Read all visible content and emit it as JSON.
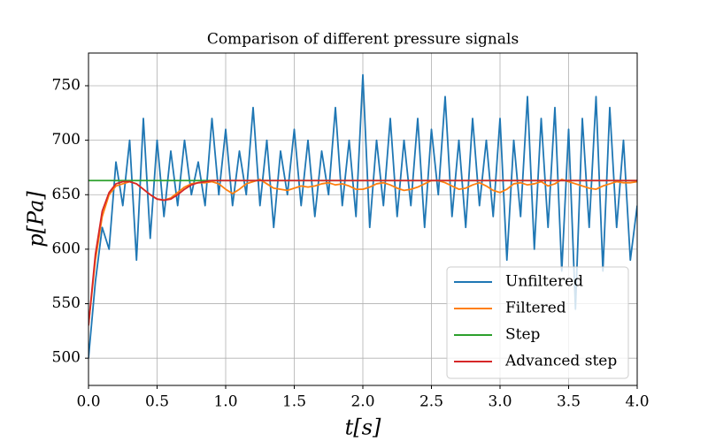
{
  "chart_data": {
    "type": "line",
    "title": "Comparison of different pressure signals",
    "xlabel": "t[s]",
    "ylabel": "p[Pa]",
    "x": [
      0,
      0.05,
      0.1,
      0.15,
      0.2,
      0.25,
      0.3,
      0.35,
      0.4,
      0.45,
      0.5,
      0.55,
      0.6,
      0.65,
      0.7,
      0.75,
      0.8,
      0.85,
      0.9,
      0.95,
      1.0,
      1.05,
      1.1,
      1.15,
      1.2,
      1.25,
      1.3,
      1.35,
      1.4,
      1.45,
      1.5,
      1.55,
      1.6,
      1.65,
      1.7,
      1.75,
      1.8,
      1.85,
      1.9,
      1.95,
      2.0,
      2.05,
      2.1,
      2.15,
      2.2,
      2.25,
      2.3,
      2.35,
      2.4,
      2.45,
      2.5,
      2.55,
      2.6,
      2.65,
      2.7,
      2.75,
      2.8,
      2.85,
      2.9,
      2.95,
      3.0,
      3.05,
      3.1,
      3.15,
      3.2,
      3.25,
      3.3,
      3.35,
      3.4,
      3.45,
      3.5,
      3.55,
      3.6,
      3.65,
      3.7,
      3.75,
      3.8,
      3.85,
      3.9,
      3.95,
      4.0
    ],
    "series": [
      {
        "name": "Unfiltered",
        "color": "#1f77b4",
        "values": [
          500,
          570,
          620,
          600,
          680,
          640,
          700,
          590,
          720,
          610,
          700,
          630,
          690,
          640,
          700,
          650,
          680,
          640,
          720,
          650,
          710,
          640,
          690,
          650,
          730,
          640,
          700,
          620,
          690,
          650,
          710,
          640,
          700,
          630,
          690,
          650,
          730,
          640,
          700,
          630,
          760,
          620,
          700,
          640,
          720,
          630,
          700,
          640,
          720,
          620,
          710,
          650,
          740,
          630,
          700,
          620,
          720,
          640,
          700,
          630,
          720,
          590,
          700,
          630,
          740,
          600,
          720,
          620,
          730,
          580,
          710,
          545,
          720,
          620,
          740,
          580,
          730,
          620,
          700,
          590,
          640
        ]
      },
      {
        "name": "Filtered",
        "color": "#ff7f0e",
        "values": [
          530,
          590,
          630,
          650,
          658,
          660,
          662,
          660,
          655,
          650,
          646,
          645,
          647,
          652,
          657,
          660,
          661,
          661,
          662,
          660,
          655,
          651,
          655,
          660,
          662,
          664,
          660,
          656,
          655,
          654,
          656,
          658,
          657,
          658,
          660,
          661,
          659,
          660,
          658,
          655,
          655,
          657,
          660,
          661,
          659,
          656,
          654,
          655,
          657,
          660,
          663,
          663,
          661,
          658,
          655,
          656,
          659,
          661,
          658,
          654,
          652,
          655,
          660,
          661,
          659,
          660,
          662,
          658,
          660,
          664,
          662,
          660,
          658,
          656,
          655,
          658,
          660,
          662,
          661,
          661,
          662
        ]
      },
      {
        "name": "Step",
        "color": "#2ca02c",
        "values": [
          663,
          663,
          663,
          663,
          663,
          663,
          663,
          663,
          663,
          663,
          663,
          663,
          663,
          663,
          663,
          663,
          663,
          663,
          663,
          663,
          663,
          663,
          663,
          663,
          663,
          663,
          663,
          663,
          663,
          663,
          663,
          663,
          663,
          663,
          663,
          663,
          663,
          663,
          663,
          663,
          663,
          663,
          663,
          663,
          663,
          663,
          663,
          663,
          663,
          663,
          663,
          663,
          663,
          663,
          663,
          663,
          663,
          663,
          663,
          663,
          663,
          663,
          663,
          663,
          663,
          663,
          663,
          663,
          663,
          663,
          663,
          663,
          663,
          663,
          663,
          663,
          663,
          663,
          663,
          663,
          663
        ]
      },
      {
        "name": "Advanced step",
        "color": "#d62728",
        "values": [
          530,
          595,
          635,
          652,
          660,
          662,
          662,
          660,
          655,
          650,
          646,
          645,
          646,
          650,
          655,
          659,
          661,
          662,
          663,
          663,
          663,
          663,
          663,
          663,
          663,
          663,
          663,
          663,
          663,
          663,
          663,
          663,
          663,
          663,
          663,
          663,
          663,
          663,
          663,
          663,
          663,
          663,
          663,
          663,
          663,
          663,
          663,
          663,
          663,
          663,
          663,
          663,
          663,
          663,
          663,
          663,
          663,
          663,
          663,
          663,
          663,
          663,
          663,
          663,
          663,
          663,
          663,
          663,
          663,
          663,
          663,
          663,
          663,
          663,
          663,
          663,
          663,
          663,
          663,
          663,
          663
        ]
      }
    ],
    "xlim": [
      0,
      4
    ],
    "ylim": [
      475,
      780
    ],
    "xticks": [
      {
        "value": 0,
        "label": "0.0"
      },
      0.5,
      {
        "value": 1,
        "label": "1.0"
      },
      1.5,
      {
        "value": 2,
        "label": "2.0"
      },
      2.5,
      {
        "value": 3,
        "label": "3.0"
      },
      3.5,
      {
        "value": 4,
        "label": "4.0"
      }
    ],
    "yticks": [
      500,
      550,
      600,
      650,
      700,
      750
    ],
    "grid": true,
    "legend": "lower right"
  }
}
